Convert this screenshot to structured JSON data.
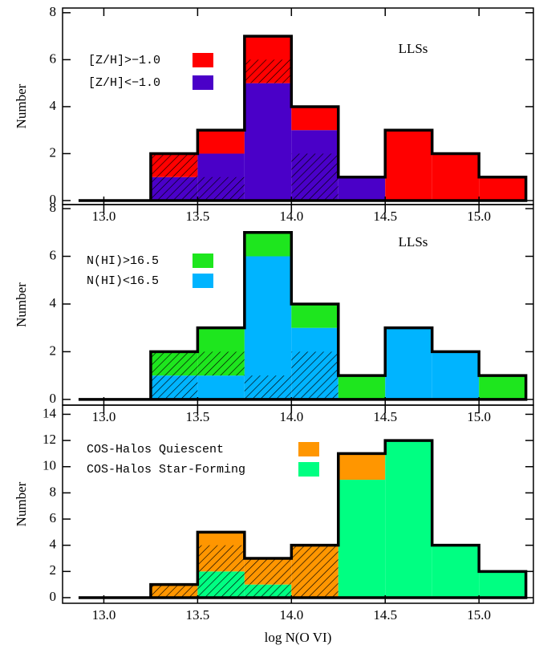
{
  "chart_data": [
    {
      "type": "histogram",
      "annotation": "LLSs",
      "ylabel": "Number",
      "bins": [
        13.25,
        13.5,
        13.75,
        14.0,
        14.25,
        14.5,
        14.75,
        15.0,
        15.25
      ],
      "xlim": [
        12.78,
        15.29
      ],
      "xticks": [
        {
          "value": 13,
          "label": "13.0"
        },
        {
          "value": 13.5,
          "label": "13.5"
        },
        {
          "value": 14,
          "label": "14.0"
        },
        {
          "value": 14.5,
          "label": "14.5"
        },
        {
          "value": 15,
          "label": "15.0"
        }
      ],
      "ylim": [
        -0.17,
        8.2
      ],
      "yticks": [
        0,
        2,
        4,
        6,
        8
      ],
      "series": [
        {
          "name": "[Z/H]<−1.0",
          "color": "#4a00c8",
          "values": [
            1,
            2,
            5,
            3,
            1,
            0,
            0,
            0
          ],
          "hatched_values": [
            1,
            1,
            0,
            2,
            0,
            0,
            0,
            0
          ]
        },
        {
          "name": "[Z/H]>−1.0",
          "color": "#ff0000",
          "values": [
            1,
            1,
            2,
            1,
            0,
            3,
            2,
            1
          ],
          "hatched_values": [
            1,
            0,
            1,
            0,
            0,
            0,
            0,
            0
          ]
        }
      ]
    },
    {
      "type": "histogram",
      "annotation": "LLSs",
      "ylabel": "Number",
      "bins": [
        13.25,
        13.5,
        13.75,
        14.0,
        14.25,
        14.5,
        14.75,
        15.0,
        15.25
      ],
      "xlim": [
        12.78,
        15.29
      ],
      "xticks": [
        {
          "value": 13,
          "label": "13.0"
        },
        {
          "value": 13.5,
          "label": "13.5"
        },
        {
          "value": 14,
          "label": "14.0"
        },
        {
          "value": 14.5,
          "label": "14.5"
        },
        {
          "value": 15,
          "label": "15.0"
        }
      ],
      "ylim": [
        -0.24,
        8.17
      ],
      "yticks": [
        0,
        2,
        4,
        6,
        8
      ],
      "series": [
        {
          "name": "N(HI)<16.5",
          "color": "#00b4ff",
          "values": [
            1,
            1,
            6,
            3,
            0,
            3,
            2,
            0
          ],
          "hatched_values": [
            1,
            0,
            1,
            2,
            0,
            0,
            0,
            0
          ]
        },
        {
          "name": "N(HI)>16.5",
          "color": "#1ee61e",
          "values": [
            1,
            2,
            1,
            1,
            1,
            0,
            0,
            1
          ],
          "hatched_values": [
            1,
            1,
            0,
            0,
            0,
            0,
            0,
            0
          ]
        }
      ]
    },
    {
      "type": "histogram",
      "ylabel": "Number",
      "xlabel": "log N(O VI)",
      "bins": [
        13.25,
        13.5,
        13.75,
        14.0,
        14.25,
        14.5,
        14.75,
        15.0,
        15.25
      ],
      "xlim": [
        12.78,
        15.29
      ],
      "xticks": [
        {
          "value": 13,
          "label": "13.0"
        },
        {
          "value": 13.5,
          "label": "13.5"
        },
        {
          "value": 14,
          "label": "14.0"
        },
        {
          "value": 14.5,
          "label": "14.5"
        },
        {
          "value": 15,
          "label": "15.0"
        }
      ],
      "ylim": [
        -0.43,
        14.7
      ],
      "yticks": [
        0,
        2,
        4,
        6,
        8,
        10,
        12,
        14
      ],
      "series": [
        {
          "name": "COS-Halos Star-Forming",
          "color": "#00ff82",
          "values": [
            0,
            2,
            1,
            0,
            9,
            12,
            4,
            2
          ],
          "hatched_values": [
            0,
            2,
            1,
            0,
            0,
            0,
            0,
            0
          ]
        },
        {
          "name": "COS-Halos Quiescent",
          "color": "#ff9600",
          "values": [
            1,
            3,
            2,
            4,
            2,
            0,
            0,
            0
          ],
          "hatched_values": [
            1,
            2,
            2,
            4,
            0,
            0,
            0,
            0
          ]
        }
      ]
    }
  ]
}
